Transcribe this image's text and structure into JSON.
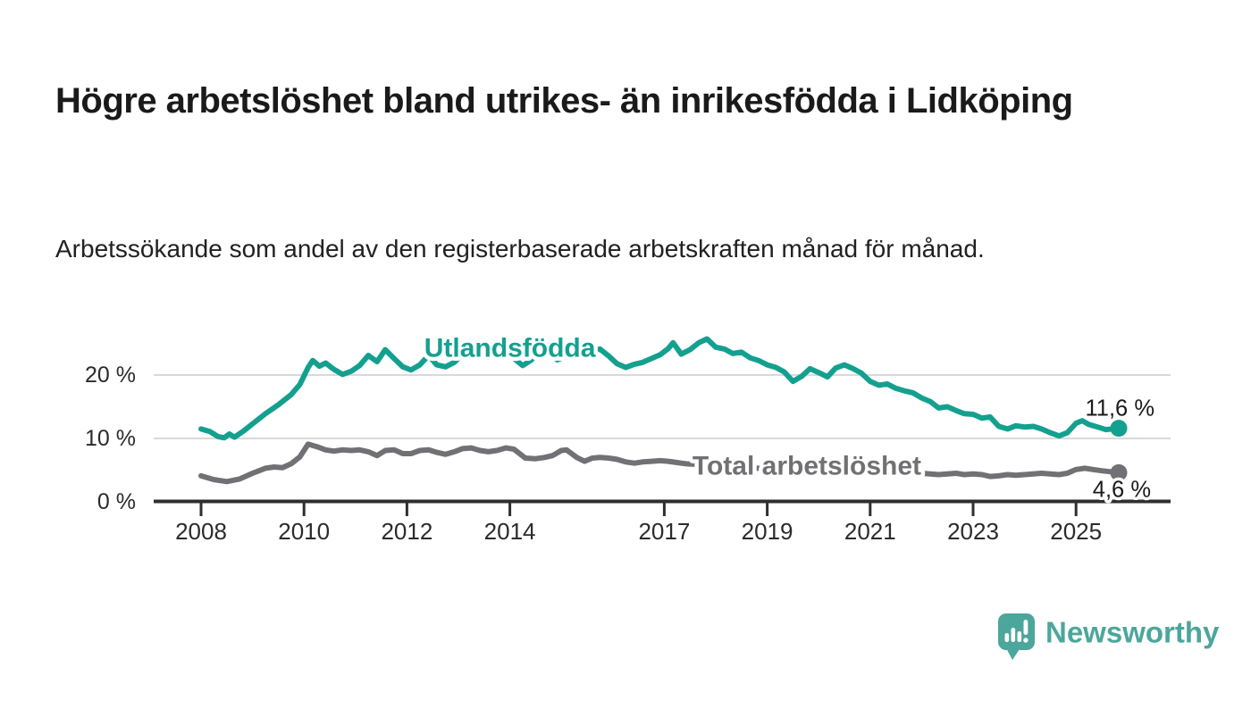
{
  "header": {
    "title": "Högre arbetslöshet bland utrikes- än inrikesfödda i Lidköping",
    "subtitle": "Arbetssökande som andel av den registerbaserade arbetskraften månad för månad."
  },
  "chart_data": {
    "type": "line",
    "title": "Högre arbetslöshet bland utrikes- än inrikesfödda i Lidköping",
    "subtitle": "Arbetssökande som andel av den registerbaserade arbetskraften månad för månad.",
    "x_unit": "year (decimal, monthly series)",
    "y_unit": "percent",
    "xlim": [
      2008,
      2026.3
    ],
    "ylim": [
      0,
      27
    ],
    "grid": "horizontal gridlines at 10 and 20, baseline axis at 0",
    "legend_position": "inline labels on lines",
    "x_ticks": [
      {
        "value": 2008,
        "label": "2008"
      },
      {
        "value": 2010,
        "label": "2010"
      },
      {
        "value": 2012,
        "label": "2012"
      },
      {
        "value": 2014,
        "label": "2014"
      },
      {
        "value": 2017,
        "label": "2017"
      },
      {
        "value": 2019,
        "label": "2019"
      },
      {
        "value": 2021,
        "label": "2021"
      },
      {
        "value": 2023,
        "label": "2023"
      },
      {
        "value": 2025,
        "label": "2025"
      }
    ],
    "y_ticks": [
      {
        "value": 0,
        "label": "0 %"
      },
      {
        "value": 10,
        "label": "10 %"
      },
      {
        "value": 20,
        "label": "20 %"
      }
    ],
    "series": [
      {
        "name": "Utlandsfödda",
        "color": "#14a08f",
        "end_value": 11.6,
        "end_label": "11,6 %",
        "inline_label_position": {
          "t": 2014.0,
          "v": 24.2
        },
        "points": [
          [
            2008.0,
            11.5
          ],
          [
            2008.17,
            11.1
          ],
          [
            2008.33,
            10.3
          ],
          [
            2008.45,
            10.1
          ],
          [
            2008.55,
            10.7
          ],
          [
            2008.65,
            10.2
          ],
          [
            2008.83,
            11.2
          ],
          [
            2009.0,
            12.3
          ],
          [
            2009.25,
            13.9
          ],
          [
            2009.5,
            15.3
          ],
          [
            2009.75,
            16.9
          ],
          [
            2009.92,
            18.5
          ],
          [
            2010.08,
            21.2
          ],
          [
            2010.17,
            22.3
          ],
          [
            2010.3,
            21.4
          ],
          [
            2010.42,
            21.9
          ],
          [
            2010.58,
            20.9
          ],
          [
            2010.75,
            20.1
          ],
          [
            2010.92,
            20.6
          ],
          [
            2011.08,
            21.5
          ],
          [
            2011.25,
            23.1
          ],
          [
            2011.42,
            22.1
          ],
          [
            2011.58,
            24.0
          ],
          [
            2011.75,
            22.6
          ],
          [
            2011.92,
            21.3
          ],
          [
            2012.08,
            20.8
          ],
          [
            2012.25,
            21.6
          ],
          [
            2012.42,
            23.1
          ],
          [
            2012.58,
            21.6
          ],
          [
            2012.75,
            21.3
          ],
          [
            2012.92,
            22.0
          ],
          [
            2013.08,
            23.3
          ],
          [
            2013.25,
            24.2
          ],
          [
            2013.42,
            22.8
          ],
          [
            2013.58,
            23.6
          ],
          [
            2013.75,
            23.1
          ],
          [
            2013.92,
            23.6
          ],
          [
            2014.08,
            22.6
          ],
          [
            2014.25,
            21.5
          ],
          [
            2014.42,
            22.4
          ],
          [
            2014.58,
            24.4
          ],
          [
            2014.75,
            23.5
          ],
          [
            2014.92,
            22.4
          ],
          [
            2015.08,
            22.9
          ],
          [
            2015.25,
            23.7
          ],
          [
            2015.42,
            23.1
          ],
          [
            2015.58,
            23.8
          ],
          [
            2015.75,
            24.1
          ],
          [
            2015.92,
            23.0
          ],
          [
            2016.08,
            21.8
          ],
          [
            2016.25,
            21.2
          ],
          [
            2016.42,
            21.7
          ],
          [
            2016.58,
            22.0
          ],
          [
            2016.75,
            22.6
          ],
          [
            2016.92,
            23.2
          ],
          [
            2017.08,
            24.2
          ],
          [
            2017.17,
            25.1
          ],
          [
            2017.33,
            23.3
          ],
          [
            2017.5,
            24.0
          ],
          [
            2017.67,
            25.1
          ],
          [
            2017.83,
            25.7
          ],
          [
            2018.0,
            24.4
          ],
          [
            2018.17,
            24.1
          ],
          [
            2018.33,
            23.4
          ],
          [
            2018.5,
            23.6
          ],
          [
            2018.67,
            22.7
          ],
          [
            2018.83,
            22.3
          ],
          [
            2019.0,
            21.6
          ],
          [
            2019.17,
            21.2
          ],
          [
            2019.33,
            20.5
          ],
          [
            2019.5,
            19.0
          ],
          [
            2019.67,
            19.8
          ],
          [
            2019.83,
            21.0
          ],
          [
            2020.0,
            20.4
          ],
          [
            2020.17,
            19.7
          ],
          [
            2020.33,
            21.1
          ],
          [
            2020.5,
            21.6
          ],
          [
            2020.67,
            21.0
          ],
          [
            2020.83,
            20.3
          ],
          [
            2021.0,
            19.0
          ],
          [
            2021.17,
            18.4
          ],
          [
            2021.33,
            18.6
          ],
          [
            2021.5,
            17.9
          ],
          [
            2021.67,
            17.5
          ],
          [
            2021.83,
            17.2
          ],
          [
            2022.0,
            16.4
          ],
          [
            2022.17,
            15.8
          ],
          [
            2022.33,
            14.8
          ],
          [
            2022.5,
            15.0
          ],
          [
            2022.67,
            14.4
          ],
          [
            2022.83,
            13.9
          ],
          [
            2023.0,
            13.8
          ],
          [
            2023.17,
            13.2
          ],
          [
            2023.33,
            13.4
          ],
          [
            2023.5,
            11.9
          ],
          [
            2023.67,
            11.5
          ],
          [
            2023.83,
            12.0
          ],
          [
            2024.0,
            11.8
          ],
          [
            2024.17,
            11.9
          ],
          [
            2024.33,
            11.5
          ],
          [
            2024.5,
            10.9
          ],
          [
            2024.67,
            10.4
          ],
          [
            2024.83,
            10.9
          ],
          [
            2025.0,
            12.4
          ],
          [
            2025.12,
            12.8
          ],
          [
            2025.25,
            12.2
          ],
          [
            2025.42,
            11.8
          ],
          [
            2025.58,
            11.4
          ],
          [
            2025.83,
            11.6
          ]
        ]
      },
      {
        "name": "Total arbetslöshet",
        "color": "#717074",
        "end_value": 4.6,
        "end_label": "4,6 %",
        "inline_label_position": {
          "t": 2019.77,
          "v": 5.6
        },
        "points": [
          [
            2008.0,
            4.1
          ],
          [
            2008.25,
            3.5
          ],
          [
            2008.5,
            3.2
          ],
          [
            2008.75,
            3.6
          ],
          [
            2009.0,
            4.5
          ],
          [
            2009.25,
            5.3
          ],
          [
            2009.42,
            5.5
          ],
          [
            2009.58,
            5.4
          ],
          [
            2009.75,
            6.0
          ],
          [
            2009.92,
            7.1
          ],
          [
            2010.08,
            9.1
          ],
          [
            2010.25,
            8.7
          ],
          [
            2010.42,
            8.2
          ],
          [
            2010.58,
            8.0
          ],
          [
            2010.75,
            8.2
          ],
          [
            2010.92,
            8.1
          ],
          [
            2011.08,
            8.2
          ],
          [
            2011.25,
            7.9
          ],
          [
            2011.42,
            7.3
          ],
          [
            2011.58,
            8.1
          ],
          [
            2011.75,
            8.2
          ],
          [
            2011.92,
            7.6
          ],
          [
            2012.08,
            7.6
          ],
          [
            2012.25,
            8.1
          ],
          [
            2012.42,
            8.2
          ],
          [
            2012.58,
            7.8
          ],
          [
            2012.75,
            7.5
          ],
          [
            2012.92,
            7.9
          ],
          [
            2013.08,
            8.4
          ],
          [
            2013.25,
            8.5
          ],
          [
            2013.42,
            8.1
          ],
          [
            2013.58,
            7.9
          ],
          [
            2013.75,
            8.1
          ],
          [
            2013.92,
            8.5
          ],
          [
            2014.08,
            8.3
          ],
          [
            2014.3,
            6.9
          ],
          [
            2014.5,
            6.8
          ],
          [
            2014.67,
            7.0
          ],
          [
            2014.83,
            7.3
          ],
          [
            2015.0,
            8.1
          ],
          [
            2015.1,
            8.2
          ],
          [
            2015.3,
            7.0
          ],
          [
            2015.45,
            6.4
          ],
          [
            2015.6,
            6.9
          ],
          [
            2015.75,
            7.0
          ],
          [
            2015.92,
            6.9
          ],
          [
            2016.08,
            6.7
          ],
          [
            2016.25,
            6.3
          ],
          [
            2016.42,
            6.1
          ],
          [
            2016.58,
            6.3
          ],
          [
            2016.75,
            6.4
          ],
          [
            2016.92,
            6.5
          ],
          [
            2017.08,
            6.4
          ],
          [
            2017.25,
            6.2
          ],
          [
            2017.42,
            6.0
          ],
          [
            2017.67,
            5.9
          ],
          [
            2018.0,
            5.7
          ],
          [
            2018.33,
            5.5
          ],
          [
            2018.67,
            5.4
          ],
          [
            2019.0,
            5.2
          ],
          [
            2019.33,
            5.1
          ],
          [
            2019.67,
            5.0
          ],
          [
            2020.0,
            5.2
          ],
          [
            2020.33,
            5.6
          ],
          [
            2020.67,
            5.4
          ],
          [
            2021.0,
            5.1
          ],
          [
            2021.33,
            4.9
          ],
          [
            2021.67,
            4.7
          ],
          [
            2022.0,
            4.5
          ],
          [
            2022.33,
            4.3
          ],
          [
            2022.5,
            4.4
          ],
          [
            2022.67,
            4.5
          ],
          [
            2022.83,
            4.3
          ],
          [
            2023.0,
            4.4
          ],
          [
            2023.17,
            4.3
          ],
          [
            2023.33,
            4.0
          ],
          [
            2023.5,
            4.1
          ],
          [
            2023.67,
            4.3
          ],
          [
            2023.83,
            4.2
          ],
          [
            2024.0,
            4.3
          ],
          [
            2024.17,
            4.4
          ],
          [
            2024.33,
            4.5
          ],
          [
            2024.5,
            4.4
          ],
          [
            2024.67,
            4.3
          ],
          [
            2024.83,
            4.5
          ],
          [
            2025.0,
            5.1
          ],
          [
            2025.17,
            5.3
          ],
          [
            2025.33,
            5.1
          ],
          [
            2025.5,
            4.9
          ],
          [
            2025.83,
            4.6
          ]
        ]
      }
    ],
    "colors": {
      "gridline": "#d9d9d9",
      "axis": "#2f2f2f",
      "tick_text": "#2b2b2b",
      "end_label_text": "#1a1a1a"
    }
  },
  "branding": {
    "logo_text": "Newsworthy",
    "logo_color": "#4ca69b",
    "logo_icon": "speech-bubble-bar-chart-icon"
  }
}
